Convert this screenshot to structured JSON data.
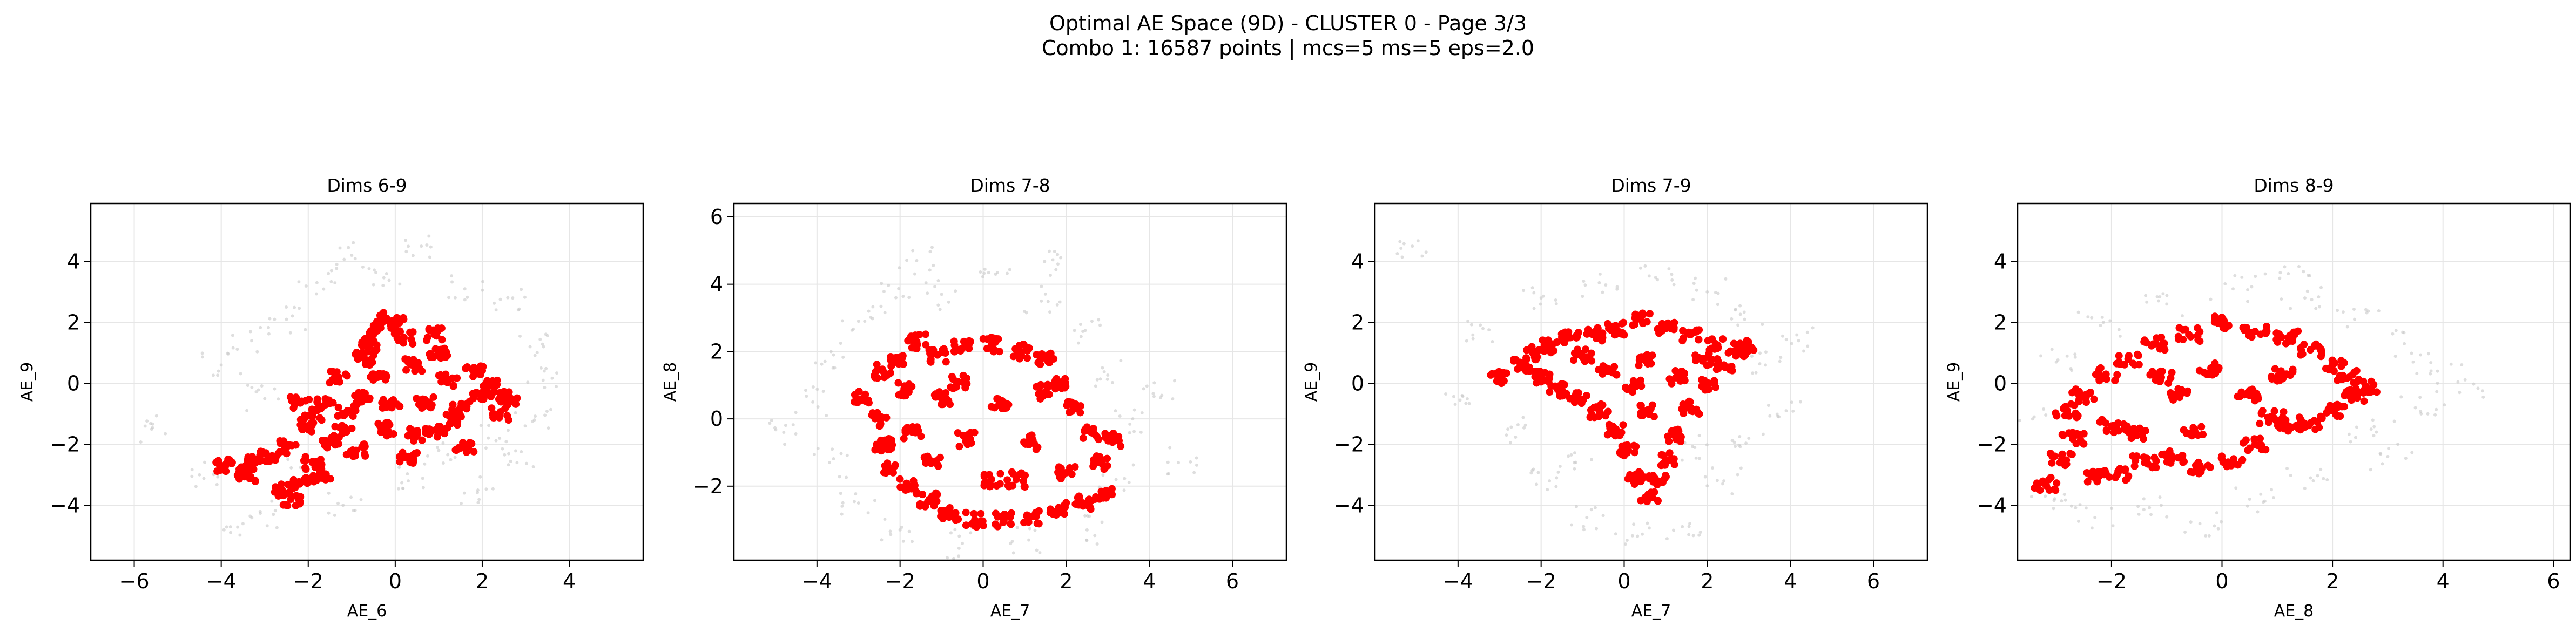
{
  "figure": {
    "suptitle_line1": "Optimal AE Space (9D) - CLUSTER 0 - Page 3/3",
    "suptitle_line2": "Combo 1: 16587 points | mcs=5 ms=5 eps=2.0"
  },
  "colors": {
    "cluster": "#ff0000",
    "background_points": "#c8c8c8",
    "grid": "#e6e6e6"
  },
  "chart_data": [
    {
      "type": "scatter",
      "title": "Dims 6-9",
      "xlabel": "AE_6",
      "ylabel": "AE_9",
      "xlim": [
        -7,
        5.7
      ],
      "ylim": [
        -5.8,
        5.9
      ],
      "xticks": [
        -6,
        -4,
        -2,
        0,
        2,
        4
      ],
      "yticks": [
        -4,
        -2,
        0,
        2,
        4
      ],
      "grid": true,
      "series": [
        {
          "role": "background",
          "points": [
            [
              -5.6,
              -1.5
            ],
            [
              -4.5,
              -3
            ],
            [
              -3.5,
              -4.6
            ],
            [
              -2.8,
              -4.3
            ],
            [
              -2.5,
              2.1
            ],
            [
              -1.8,
              3.3
            ],
            [
              -1,
              4.2
            ],
            [
              -0.2,
              3.6
            ],
            [
              0.6,
              4.5
            ],
            [
              1.6,
              3.1
            ],
            [
              2.7,
              2.8
            ],
            [
              3.1,
              1.2
            ],
            [
              3.4,
              0.1
            ],
            [
              3.2,
              -1.2
            ],
            [
              2.8,
              -2.6
            ],
            [
              1.9,
              -3.5
            ],
            [
              0.3,
              -3.2
            ],
            [
              -1.2,
              -4
            ],
            [
              -3.3,
              1.4
            ],
            [
              -4,
              0.6
            ],
            [
              -3,
              -0.5
            ],
            [
              -2.1,
              -2.9
            ],
            [
              1,
              -2.2
            ],
            [
              2.4,
              -1.8
            ]
          ]
        },
        {
          "role": "cluster",
          "points": [
            [
              -3.9,
              -2.7
            ],
            [
              -3.5,
              -2.9
            ],
            [
              -3.3,
              -2.6
            ],
            [
              -3.4,
              -3
            ],
            [
              -2.9,
              -2.4
            ],
            [
              -2.6,
              -3.5
            ],
            [
              -2.4,
              -3.8
            ],
            [
              -2.2,
              -3.3
            ],
            [
              -2.5,
              -2.1
            ],
            [
              -2.1,
              -1.4
            ],
            [
              -1.9,
              -2.6
            ],
            [
              -1.7,
              -3.1
            ],
            [
              -1.5,
              -1.9
            ],
            [
              -1.6,
              -0.7
            ],
            [
              -1.3,
              0.2
            ],
            [
              -1.1,
              -0.9
            ],
            [
              -0.9,
              -2.2
            ],
            [
              -0.7,
              0.8
            ],
            [
              -0.5,
              1.6
            ],
            [
              -0.3,
              2.1
            ],
            [
              0,
              2
            ],
            [
              0.2,
              1.5
            ],
            [
              0.4,
              0.6
            ],
            [
              0.7,
              -0.6
            ],
            [
              1,
              1
            ],
            [
              1.2,
              0.1
            ],
            [
              1.5,
              -0.8
            ],
            [
              1.8,
              0.4
            ],
            [
              2,
              -0.3
            ],
            [
              2.3,
              -0.1
            ],
            [
              2.6,
              -0.5
            ],
            [
              2.4,
              -1
            ],
            [
              1.6,
              -2.1
            ],
            [
              1,
              -1.6
            ],
            [
              0.5,
              -1.7
            ],
            [
              -0.1,
              -0.6
            ],
            [
              -0.4,
              0.2
            ],
            [
              -0.8,
              -0.5
            ],
            [
              -1.2,
              -1.6
            ],
            [
              -0.6,
              1.2
            ],
            [
              0.9,
              1.6
            ],
            [
              -2.2,
              -0.6
            ],
            [
              0.3,
              -2.4
            ],
            [
              -1.9,
              -1
            ],
            [
              -0.2,
              -1.5
            ],
            [
              1.3,
              -1.2
            ]
          ]
        }
      ]
    },
    {
      "type": "scatter",
      "title": "Dims 7-8",
      "xlabel": "AE_7",
      "ylabel": "AE_8",
      "xlim": [
        -6,
        7.3
      ],
      "ylim": [
        -4.2,
        6.4
      ],
      "xticks": [
        -4,
        -2,
        0,
        2,
        4,
        6
      ],
      "yticks": [
        -2,
        0,
        2,
        4,
        6
      ],
      "grid": true,
      "series": [
        {
          "role": "background",
          "points": [
            [
              -4.1,
              0.5
            ],
            [
              -3.6,
              1.9
            ],
            [
              -3,
              2.9
            ],
            [
              -2.1,
              3.6
            ],
            [
              -1,
              3.7
            ],
            [
              0.3,
              4.3
            ],
            [
              1.4,
              3.5
            ],
            [
              2.4,
              2.6
            ],
            [
              3,
              1.3
            ],
            [
              3.6,
              0
            ],
            [
              3.2,
              -1.8
            ],
            [
              2.5,
              -3.3
            ],
            [
              1.1,
              -3.6
            ],
            [
              -0.5,
              -3.7
            ],
            [
              -2,
              -3.3
            ],
            [
              -3,
              -2.5
            ],
            [
              -3.7,
              -1.3
            ],
            [
              4.3,
              0.7
            ],
            [
              4.7,
              -1.3
            ],
            [
              -4.8,
              -0.4
            ],
            [
              1.8,
              4.6
            ],
            [
              -1.6,
              4.7
            ]
          ]
        },
        {
          "role": "cluster",
          "points": [
            [
              -2.9,
              0.6
            ],
            [
              -2.4,
              1.4
            ],
            [
              -2.1,
              1.8
            ],
            [
              -1.6,
              2.3
            ],
            [
              -1.1,
              1.9
            ],
            [
              -0.5,
              2.1
            ],
            [
              0.2,
              2.2
            ],
            [
              0.9,
              2
            ],
            [
              1.5,
              1.8
            ],
            [
              1.9,
              1.1
            ],
            [
              2.2,
              0.3
            ],
            [
              2.6,
              -0.4
            ],
            [
              3.1,
              -0.6
            ],
            [
              2.8,
              -1.3
            ],
            [
              2.9,
              -2.2
            ],
            [
              2.4,
              -2.5
            ],
            [
              1.8,
              -2.7
            ],
            [
              1.2,
              -2.9
            ],
            [
              0.5,
              -3
            ],
            [
              -0.2,
              -3
            ],
            [
              -0.8,
              -2.8
            ],
            [
              -1.3,
              -2.4
            ],
            [
              -1.8,
              -2
            ],
            [
              -2.2,
              -1.5
            ],
            [
              -2.4,
              -0.8
            ],
            [
              -2.5,
              0
            ],
            [
              -1.7,
              -0.4
            ],
            [
              -1,
              0.6
            ],
            [
              -0.4,
              -0.6
            ],
            [
              0.4,
              0.4
            ],
            [
              1.1,
              -0.7
            ],
            [
              0.2,
              -1.8
            ],
            [
              -1.2,
              -1.3
            ],
            [
              1.5,
              0.8
            ],
            [
              -0.6,
              1.1
            ],
            [
              2,
              -1.6
            ],
            [
              0.8,
              -1.8
            ],
            [
              -1.9,
              0.9
            ]
          ]
        }
      ]
    },
    {
      "type": "scatter",
      "title": "Dims 7-9",
      "xlabel": "AE_7",
      "ylabel": "AE_9",
      "xlim": [
        -6,
        7.3
      ],
      "ylim": [
        -5.8,
        5.9
      ],
      "xticks": [
        -4,
        -2,
        0,
        2,
        4,
        6
      ],
      "yticks": [
        -4,
        -2,
        0,
        2,
        4
      ],
      "grid": true,
      "series": [
        {
          "role": "background",
          "points": [
            [
              -5.1,
              4.5
            ],
            [
              -3.4,
              1.8
            ],
            [
              -2.8,
              -1.5
            ],
            [
              -1.8,
              -3.2
            ],
            [
              -0.9,
              -4.4
            ],
            [
              0.2,
              -5
            ],
            [
              1.4,
              -4.7
            ],
            [
              2.4,
              -3.2
            ],
            [
              3,
              -1.8
            ],
            [
              3.4,
              0.6
            ],
            [
              2.9,
              2.1
            ],
            [
              2,
              3
            ],
            [
              0.8,
              3.4
            ],
            [
              -0.6,
              3.3
            ],
            [
              -2,
              2.8
            ],
            [
              -3.9,
              -0.4
            ],
            [
              3.9,
              -0.9
            ],
            [
              4.2,
              1.4
            ],
            [
              -1.2,
              -2.6
            ],
            [
              1.7,
              -2.1
            ]
          ]
        },
        {
          "role": "cluster",
          "points": [
            [
              -3,
              0.2
            ],
            [
              -2.5,
              0.6
            ],
            [
              -2.2,
              1
            ],
            [
              -1.8,
              1.2
            ],
            [
              -1.3,
              1.5
            ],
            [
              -0.7,
              1.6
            ],
            [
              -0.2,
              1.8
            ],
            [
              0.4,
              2.1
            ],
            [
              1,
              1.8
            ],
            [
              1.6,
              1.6
            ],
            [
              2.2,
              1.3
            ],
            [
              2.7,
              1.1
            ],
            [
              2.9,
              1.2
            ],
            [
              2.4,
              0.6
            ],
            [
              2,
              0
            ],
            [
              1.6,
              -0.8
            ],
            [
              1.2,
              -1.7
            ],
            [
              1,
              -2.5
            ],
            [
              0.8,
              -3.2
            ],
            [
              0.6,
              -3.7
            ],
            [
              0.3,
              -3.1
            ],
            [
              0.1,
              -2.2
            ],
            [
              -0.2,
              -1.5
            ],
            [
              -0.6,
              -0.9
            ],
            [
              -1.1,
              -0.5
            ],
            [
              -1.6,
              -0.2
            ],
            [
              -2,
              0.2
            ],
            [
              -0.4,
              0.4
            ],
            [
              0.5,
              0.8
            ],
            [
              1.3,
              0.2
            ],
            [
              0.6,
              -0.9
            ],
            [
              -1,
              0.9
            ],
            [
              1.9,
              0.8
            ],
            [
              0.2,
              -0.1
            ]
          ]
        }
      ]
    },
    {
      "type": "scatter",
      "title": "Dims 8-9",
      "xlabel": "AE_8",
      "ylabel": "AE_9",
      "xlim": [
        -3.7,
        6.3
      ],
      "ylim": [
        -5.8,
        5.9
      ],
      "xticks": [
        -2,
        0,
        2,
        4,
        6
      ],
      "yticks": [
        -4,
        -2,
        0,
        2,
        4
      ],
      "grid": true,
      "series": [
        {
          "role": "background",
          "points": [
            [
              -3.2,
              -3.7
            ],
            [
              -2.3,
              -4.4
            ],
            [
              -1.1,
              -4
            ],
            [
              0.5,
              -3.8
            ],
            [
              1.6,
              -3.1
            ],
            [
              2.7,
              -1.5
            ],
            [
              3.5,
              -0.8
            ],
            [
              3.9,
              0.4
            ],
            [
              3.3,
              1.3
            ],
            [
              2.4,
              2.1
            ],
            [
              1.5,
              2.8
            ],
            [
              0.2,
              3.1
            ],
            [
              -1,
              2.6
            ],
            [
              -2.2,
              1.9
            ],
            [
              -3,
              0.7
            ],
            [
              -3.4,
              -1.1
            ],
            [
              3,
              -2.4
            ],
            [
              4.3,
              -0.3
            ],
            [
              -0.4,
              -4.6
            ],
            [
              1.2,
              3.6
            ]
          ]
        },
        {
          "role": "cluster",
          "points": [
            [
              -3.2,
              -3.3
            ],
            [
              -2.9,
              -2.5
            ],
            [
              -2.7,
              -1.8
            ],
            [
              -2.8,
              -0.9
            ],
            [
              -2.5,
              -0.4
            ],
            [
              -2.1,
              0.3
            ],
            [
              -1.7,
              0.8
            ],
            [
              -1.2,
              1.3
            ],
            [
              -0.6,
              1.6
            ],
            [
              0,
              2
            ],
            [
              0.6,
              1.7
            ],
            [
              1.2,
              1.5
            ],
            [
              1.6,
              1.1
            ],
            [
              2,
              0.6
            ],
            [
              2.3,
              0.2
            ],
            [
              2.6,
              -0.1
            ],
            [
              2.4,
              -0.4
            ],
            [
              2,
              -0.9
            ],
            [
              1.6,
              -1.3
            ],
            [
              1.2,
              -1.4
            ],
            [
              0.6,
              -2
            ],
            [
              0.2,
              -2.6
            ],
            [
              -0.4,
              -2.8
            ],
            [
              -0.9,
              -2.4
            ],
            [
              -1.4,
              -2.6
            ],
            [
              -1.9,
              -3
            ],
            [
              -2.3,
              -3.1
            ],
            [
              -1.6,
              -1.6
            ],
            [
              -0.8,
              -0.4
            ],
            [
              -0.2,
              0.5
            ],
            [
              0.5,
              -0.4
            ],
            [
              1.1,
              0.3
            ],
            [
              -1.1,
              0.2
            ],
            [
              -2,
              -1.4
            ],
            [
              0.9,
              -1.1
            ],
            [
              -0.5,
              -1.5
            ]
          ]
        }
      ]
    }
  ]
}
